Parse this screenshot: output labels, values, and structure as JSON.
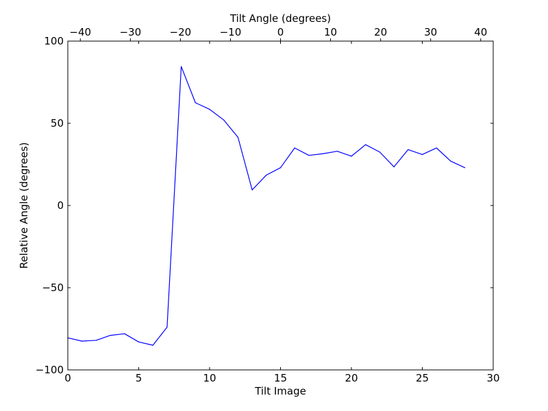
{
  "chart_data": {
    "type": "line",
    "title": "",
    "xlabel": "Tilt Image",
    "ylabel": "Relative Angle (degrees)",
    "x2label": "Tilt Angle (degrees)",
    "xlim": [
      0,
      30
    ],
    "ylim": [
      -100,
      100
    ],
    "x2lim": [
      -42.5,
      42.5
    ],
    "xticks": [
      0,
      5,
      10,
      15,
      20,
      25,
      30
    ],
    "xtick_labels": [
      "0",
      "5",
      "10",
      "15",
      "20",
      "25",
      "30"
    ],
    "yticks": [
      -100,
      -50,
      0,
      50,
      100
    ],
    "ytick_labels": [
      "−100",
      "−50",
      "0",
      "50",
      "100"
    ],
    "x2ticks": [
      -40,
      -30,
      -20,
      -10,
      0,
      10,
      20,
      30,
      40
    ],
    "x2tick_labels": [
      "−40",
      "−30",
      "−20",
      "−10",
      "0",
      "10",
      "20",
      "30",
      "40"
    ],
    "grid": false,
    "legend": "none",
    "series": [
      {
        "color": "#0000ff",
        "x": [
          0,
          1,
          2,
          3,
          4,
          5,
          6,
          7,
          8,
          9,
          10,
          11,
          12,
          13,
          14,
          15,
          16,
          17,
          18,
          19,
          20,
          21,
          22,
          23,
          24,
          25,
          26,
          27,
          28
        ],
        "y": [
          -80.5,
          -82.5,
          -82,
          -79,
          -78,
          -83,
          -85,
          -74,
          84.5,
          62.5,
          58.5,
          52,
          41.5,
          9.5,
          18.5,
          23,
          35,
          30.5,
          31.5,
          33,
          30,
          37,
          32.5,
          23.5,
          34,
          31,
          35,
          27,
          23
        ]
      }
    ]
  }
}
